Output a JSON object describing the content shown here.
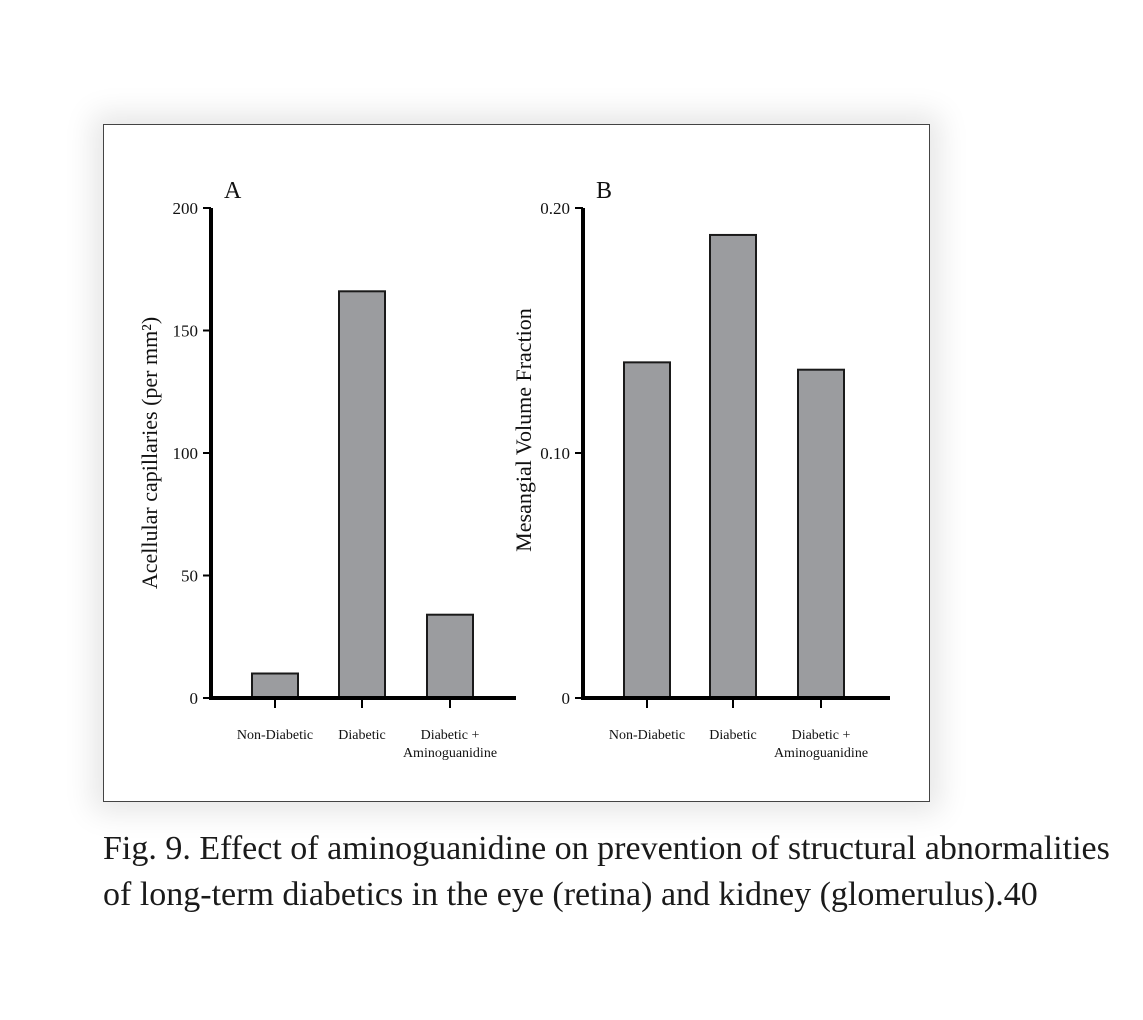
{
  "colors": {
    "bar_fill": "#9b9c9f",
    "bar_stroke": "#1a1a1a",
    "axis": "#000000"
  },
  "chart_data": [
    {
      "type": "bar",
      "panel_label": "A",
      "categories": [
        "Non-Diabetic",
        "Diabetic",
        "Diabetic + Aminoguanidine"
      ],
      "category_lines": [
        [
          "Non-Diabetic"
        ],
        [
          "Diabetic"
        ],
        [
          "Diabetic +",
          "Aminoguanidine"
        ]
      ],
      "values": [
        10,
        166,
        34
      ],
      "ylabel": "Acellular capillaries (per mm²)",
      "xlabel": "",
      "ylim": [
        0,
        200
      ],
      "yticks": [
        0,
        50,
        100,
        150,
        200
      ],
      "ytick_labels": [
        "0",
        "50",
        "100",
        "150",
        "200"
      ],
      "grid": false
    },
    {
      "type": "bar",
      "panel_label": "B",
      "categories": [
        "Non-Diabetic",
        "Diabetic",
        "Diabetic + Aminoguanidine"
      ],
      "category_lines": [
        [
          "Non-Diabetic"
        ],
        [
          "Diabetic"
        ],
        [
          "Diabetic +",
          "Aminoguanidine"
        ]
      ],
      "values": [
        0.137,
        0.189,
        0.134
      ],
      "ylabel": "Mesangial Volume Fraction",
      "xlabel": "",
      "ylim": [
        0,
        0.2
      ],
      "yticks": [
        0,
        0.1,
        0.2
      ],
      "ytick_labels": [
        "0",
        "0.10",
        "0.20"
      ],
      "grid": false
    }
  ],
  "caption": "Fig. 9.  Effect of aminoguanidine on prevention of structural abnormalities of long-term diabetics in the eye (retina) and kidney (glomerulus).40"
}
